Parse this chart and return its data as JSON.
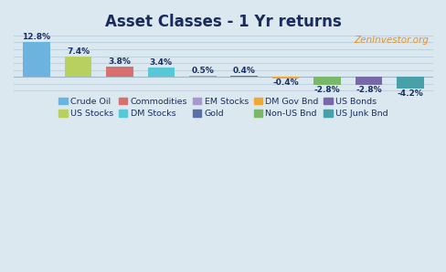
{
  "title": "Asset Classes - 1 Yr returns",
  "watermark": "ZenInvestor.org",
  "categories": [
    "Crude Oil",
    "US Stocks",
    "Commodities",
    "DM Stocks",
    "EM Stocks",
    "Gold",
    "DM Gov Bnd",
    "Non-US Bnd",
    "US Bonds",
    "US Junk Bnd"
  ],
  "values": [
    12.8,
    7.4,
    3.8,
    3.4,
    0.5,
    0.4,
    -0.4,
    -2.8,
    -2.8,
    -4.2
  ],
  "bar_colors": [
    "#6db3e0",
    "#b8d060",
    "#d97070",
    "#58c8d8",
    "#a898d0",
    "#5a6ea8",
    "#f0a832",
    "#78b868",
    "#7868a8",
    "#48a0a8"
  ],
  "legend_order": [
    {
      "label": "Crude Oil",
      "color": "#6db3e0"
    },
    {
      "label": "US Stocks",
      "color": "#b8d060"
    },
    {
      "label": "Commodities",
      "color": "#d97070"
    },
    {
      "label": "DM Stocks",
      "color": "#58c8d8"
    },
    {
      "label": "EM Stocks",
      "color": "#a898d0"
    },
    {
      "label": "Gold",
      "color": "#5a6ea8"
    },
    {
      "label": "DM Gov Bnd",
      "color": "#f0a832"
    },
    {
      "label": "Non-US Bnd",
      "color": "#78b868"
    },
    {
      "label": "US Bonds",
      "color": "#7868a8"
    },
    {
      "label": "US Junk Bnd",
      "color": "#48a0a8"
    }
  ],
  "ylim": [
    -5.5,
    15.5
  ],
  "background_color": "#dce8f0",
  "grid_color": "#c0d4e0",
  "watermark_color": "#e89020",
  "title_color": "#1a2a5a",
  "label_color": "#1a3060",
  "legend_color": "#1a3060"
}
